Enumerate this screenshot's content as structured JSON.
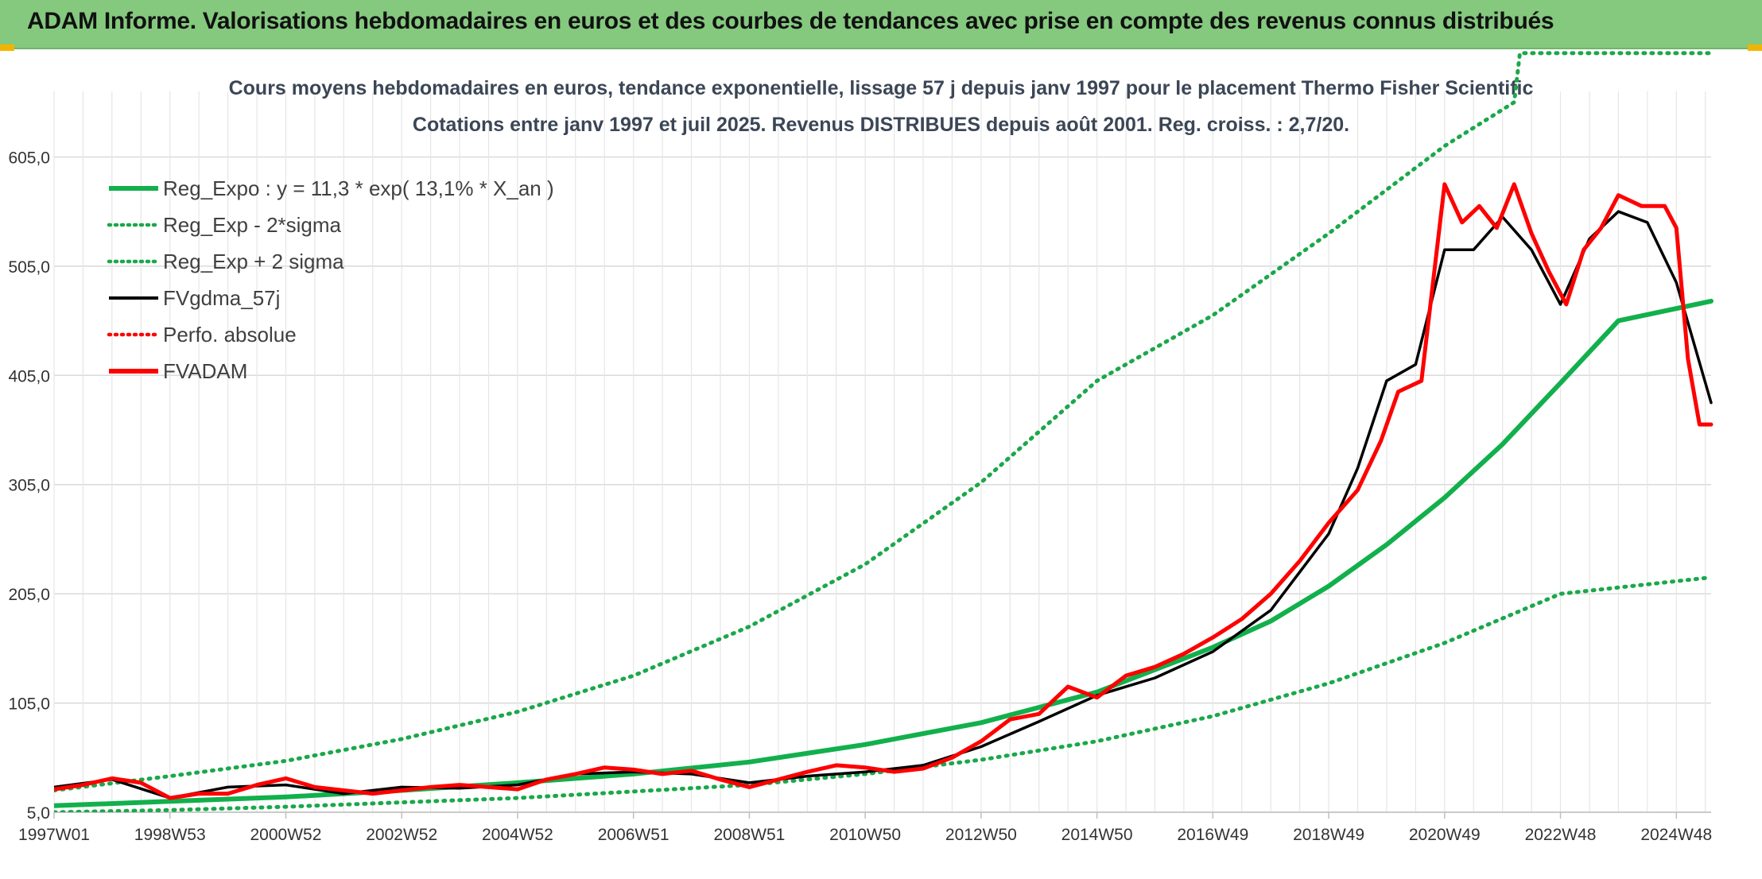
{
  "banner": {
    "title": "ADAM Informe. Valorisations hebdomadaires en euros et des courbes de tendances avec prise en compte des revenus connus distribués"
  },
  "colors": {
    "banner_bg": "#84c97e",
    "reg_expo": "#12b04c",
    "sigma": "#1aa84a",
    "fvgdma": "#000000",
    "fvadam": "#ff0000",
    "perfo": "#ff0000",
    "grid": "#d9d9d9",
    "title_text": "#3b4656"
  },
  "chart_data": {
    "type": "line",
    "title": "Cours moyens hebdomadaires en euros, tendance exponentielle, lissage 57 j depuis janv 1997 pour le placement Thermo Fisher Scientific",
    "subtitle": "Cotations entre janv 1997 et juil 2025. Revenus DISTRIBUES depuis août 2001. Reg. croiss. : 2,7/20.",
    "x_tick_labels": [
      "1997W01",
      "1998W53",
      "2000W52",
      "2002W52",
      "2004W52",
      "2006W51",
      "2008W51",
      "2010W50",
      "2012W50",
      "2014W50",
      "2016W49",
      "2018W49",
      "2020W49",
      "2022W48",
      "2024W48"
    ],
    "x_tick_years": [
      1997.0,
      1999.0,
      2001.0,
      2003.0,
      2005.0,
      2007.0,
      2009.0,
      2011.0,
      2013.0,
      2015.0,
      2017.0,
      2019.0,
      2021.0,
      2023.0,
      2025.0
    ],
    "xlim": [
      1997.0,
      2025.6
    ],
    "ylim": [
      5,
      665
    ],
    "y_ticks": [
      5,
      105,
      205,
      305,
      405,
      505,
      605
    ],
    "y_tick_labels": [
      "5,0",
      "105,0",
      "205,0",
      "305,0",
      "405,0",
      "505,0",
      "605,0"
    ],
    "grid": true,
    "legend_position": "top-left",
    "legend": [
      {
        "label": "Reg_Expo : y = 11,3 * exp( 13,1% *  X_an )",
        "style": "solid-thick",
        "color": "#12b04c"
      },
      {
        "label": "Reg_Exp - 2*sigma",
        "style": "dotted",
        "color": "#1aa84a"
      },
      {
        "label": "Reg_Exp + 2 sigma",
        "style": "dotted",
        "color": "#1aa84a"
      },
      {
        "label": "FVgdma_57j",
        "style": "solid",
        "color": "#000000"
      },
      {
        "label": "Perfo. absolue",
        "style": "dotted",
        "color": "#ff0000"
      },
      {
        "label": "FVADAM",
        "style": "solid-thick",
        "color": "#ff0000"
      }
    ],
    "series": [
      {
        "name": "Reg_Expo : y = 11,3 * exp( 13,1% *  X_an )",
        "x": [
          1997.0,
          1999.0,
          2001.0,
          2003.0,
          2005.0,
          2007.0,
          2009.0,
          2011.0,
          2013.0,
          2015.0,
          2017.0,
          2018.0,
          2019.0,
          2020.0,
          2021.0,
          2022.0,
          2023.0,
          2024.0,
          2025.6
        ],
        "y": [
          11,
          15,
          19,
          25,
          32,
          40,
          51,
          67,
          87,
          115,
          156,
          180,
          212,
          250,
          293,
          342,
          398,
          455,
          473
        ]
      },
      {
        "name": "Reg_Exp - 2*sigma",
        "x": [
          1997.0,
          1999.0,
          2001.0,
          2003.0,
          2005.0,
          2007.0,
          2009.0,
          2011.0,
          2013.0,
          2015.0,
          2017.0,
          2019.0,
          2021.0,
          2023.0,
          2025.6
        ],
        "y": [
          5,
          7,
          10,
          14,
          18,
          24,
          30,
          40,
          53,
          70,
          93,
          123,
          160,
          205,
          220
        ]
      },
      {
        "name": "Reg_Exp + 2 sigma",
        "x": [
          1997.0,
          1999.0,
          2001.0,
          2003.0,
          2005.0,
          2007.0,
          2009.0,
          2011.0,
          2013.0,
          2015.0,
          2017.0,
          2019.0,
          2021.0,
          2022.2,
          2022.3,
          2025.6
        ],
        "y": [
          25,
          38,
          52,
          72,
          97,
          130,
          175,
          232,
          307,
          400,
          460,
          535,
          615,
          655,
          700,
          700
        ]
      },
      {
        "name": "FVgdma_57j",
        "x": [
          1997.0,
          1998.0,
          1999.0,
          2000.0,
          2001.0,
          2002.0,
          2003.0,
          2004.0,
          2005.0,
          2006.0,
          2007.0,
          2008.0,
          2009.0,
          2010.0,
          2011.0,
          2012.0,
          2013.0,
          2014.0,
          2015.0,
          2016.0,
          2017.0,
          2018.0,
          2019.0,
          2019.5,
          2020.0,
          2020.5,
          2021.0,
          2021.5,
          2022.0,
          2022.5,
          2023.0,
          2023.5,
          2024.0,
          2024.5,
          2025.0,
          2025.6
        ],
        "y": [
          28,
          35,
          18,
          28,
          30,
          22,
          28,
          27,
          30,
          40,
          42,
          40,
          32,
          38,
          42,
          48,
          65,
          88,
          112,
          128,
          152,
          190,
          260,
          320,
          400,
          415,
          520,
          520,
          550,
          520,
          470,
          530,
          555,
          545,
          490,
          380
        ]
      },
      {
        "name": "FVADAM",
        "x": [
          1997.0,
          1997.5,
          1998.0,
          1998.5,
          1999.0,
          1999.5,
          2000.0,
          2000.5,
          2001.0,
          2001.5,
          2002.0,
          2002.5,
          2003.0,
          2003.5,
          2004.0,
          2004.5,
          2005.0,
          2005.5,
          2006.0,
          2006.5,
          2007.0,
          2007.5,
          2008.0,
          2008.5,
          2009.0,
          2009.5,
          2010.0,
          2010.5,
          2011.0,
          2011.5,
          2012.0,
          2012.5,
          2013.0,
          2013.5,
          2014.0,
          2014.5,
          2015.0,
          2015.5,
          2016.0,
          2016.5,
          2017.0,
          2017.5,
          2018.0,
          2018.5,
          2019.0,
          2019.5,
          2019.9,
          2020.2,
          2020.6,
          2021.0,
          2021.3,
          2021.6,
          2021.9,
          2022.2,
          2022.5,
          2022.8,
          2023.1,
          2023.4,
          2023.7,
          2024.0,
          2024.4,
          2024.8,
          2025.0,
          2025.2,
          2025.4,
          2025.6
        ],
        "y": [
          26,
          30,
          36,
          32,
          18,
          22,
          22,
          30,
          36,
          28,
          25,
          22,
          25,
          28,
          30,
          28,
          26,
          35,
          40,
          46,
          44,
          40,
          43,
          35,
          28,
          35,
          42,
          48,
          46,
          42,
          45,
          55,
          70,
          90,
          95,
          120,
          110,
          130,
          138,
          150,
          165,
          182,
          205,
          235,
          270,
          300,
          345,
          390,
          400,
          580,
          545,
          560,
          540,
          580,
          535,
          500,
          470,
          520,
          540,
          570,
          560,
          560,
          540,
          420,
          360,
          360
        ]
      }
    ]
  }
}
